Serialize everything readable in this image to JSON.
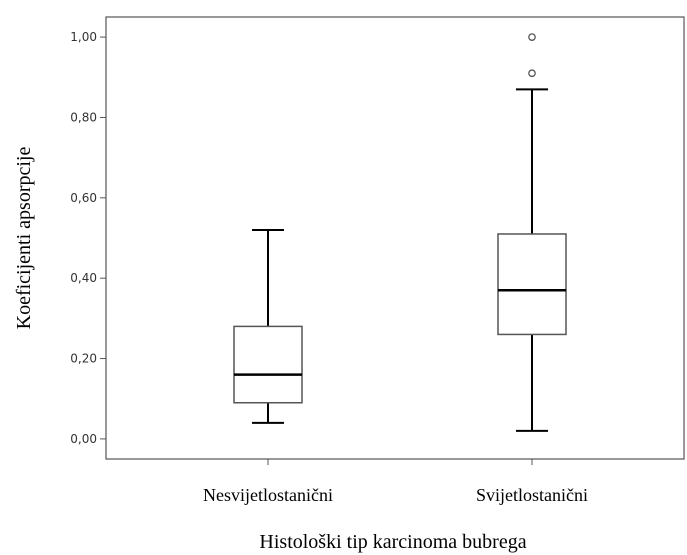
{
  "chart_data": {
    "type": "boxplot",
    "xlabel": "Histološki tip karcinoma bubrega",
    "ylabel": "Koeficijenti apsorpcije",
    "ylim": [
      -0.05,
      1.05
    ],
    "yticks": [
      {
        "value": 0.0,
        "label": "0,00"
      },
      {
        "value": 0.2,
        "label": "0,20"
      },
      {
        "value": 0.4,
        "label": "0,40"
      },
      {
        "value": 0.6,
        "label": "0,60"
      },
      {
        "value": 0.8,
        "label": "0,80"
      },
      {
        "value": 1.0,
        "label": "1,00"
      }
    ],
    "grid": false,
    "categories": [
      "Nesvijetlostanični",
      "Svijetlostanični"
    ],
    "boxes": [
      {
        "category": "Nesvijetlostanični",
        "whisker_low": 0.04,
        "q1": 0.09,
        "median": 0.16,
        "q3": 0.28,
        "whisker_high": 0.52,
        "outliers": []
      },
      {
        "category": "Svijetlostanični",
        "whisker_low": 0.02,
        "q1": 0.26,
        "median": 0.37,
        "q3": 0.51,
        "whisker_high": 0.87,
        "outliers": [
          0.91,
          1.0
        ]
      }
    ],
    "colors": {
      "box_fill": "#ffffff",
      "box_stroke": "#555555",
      "whisker": "#000000",
      "median": "#000000",
      "axis": "#555555"
    }
  }
}
